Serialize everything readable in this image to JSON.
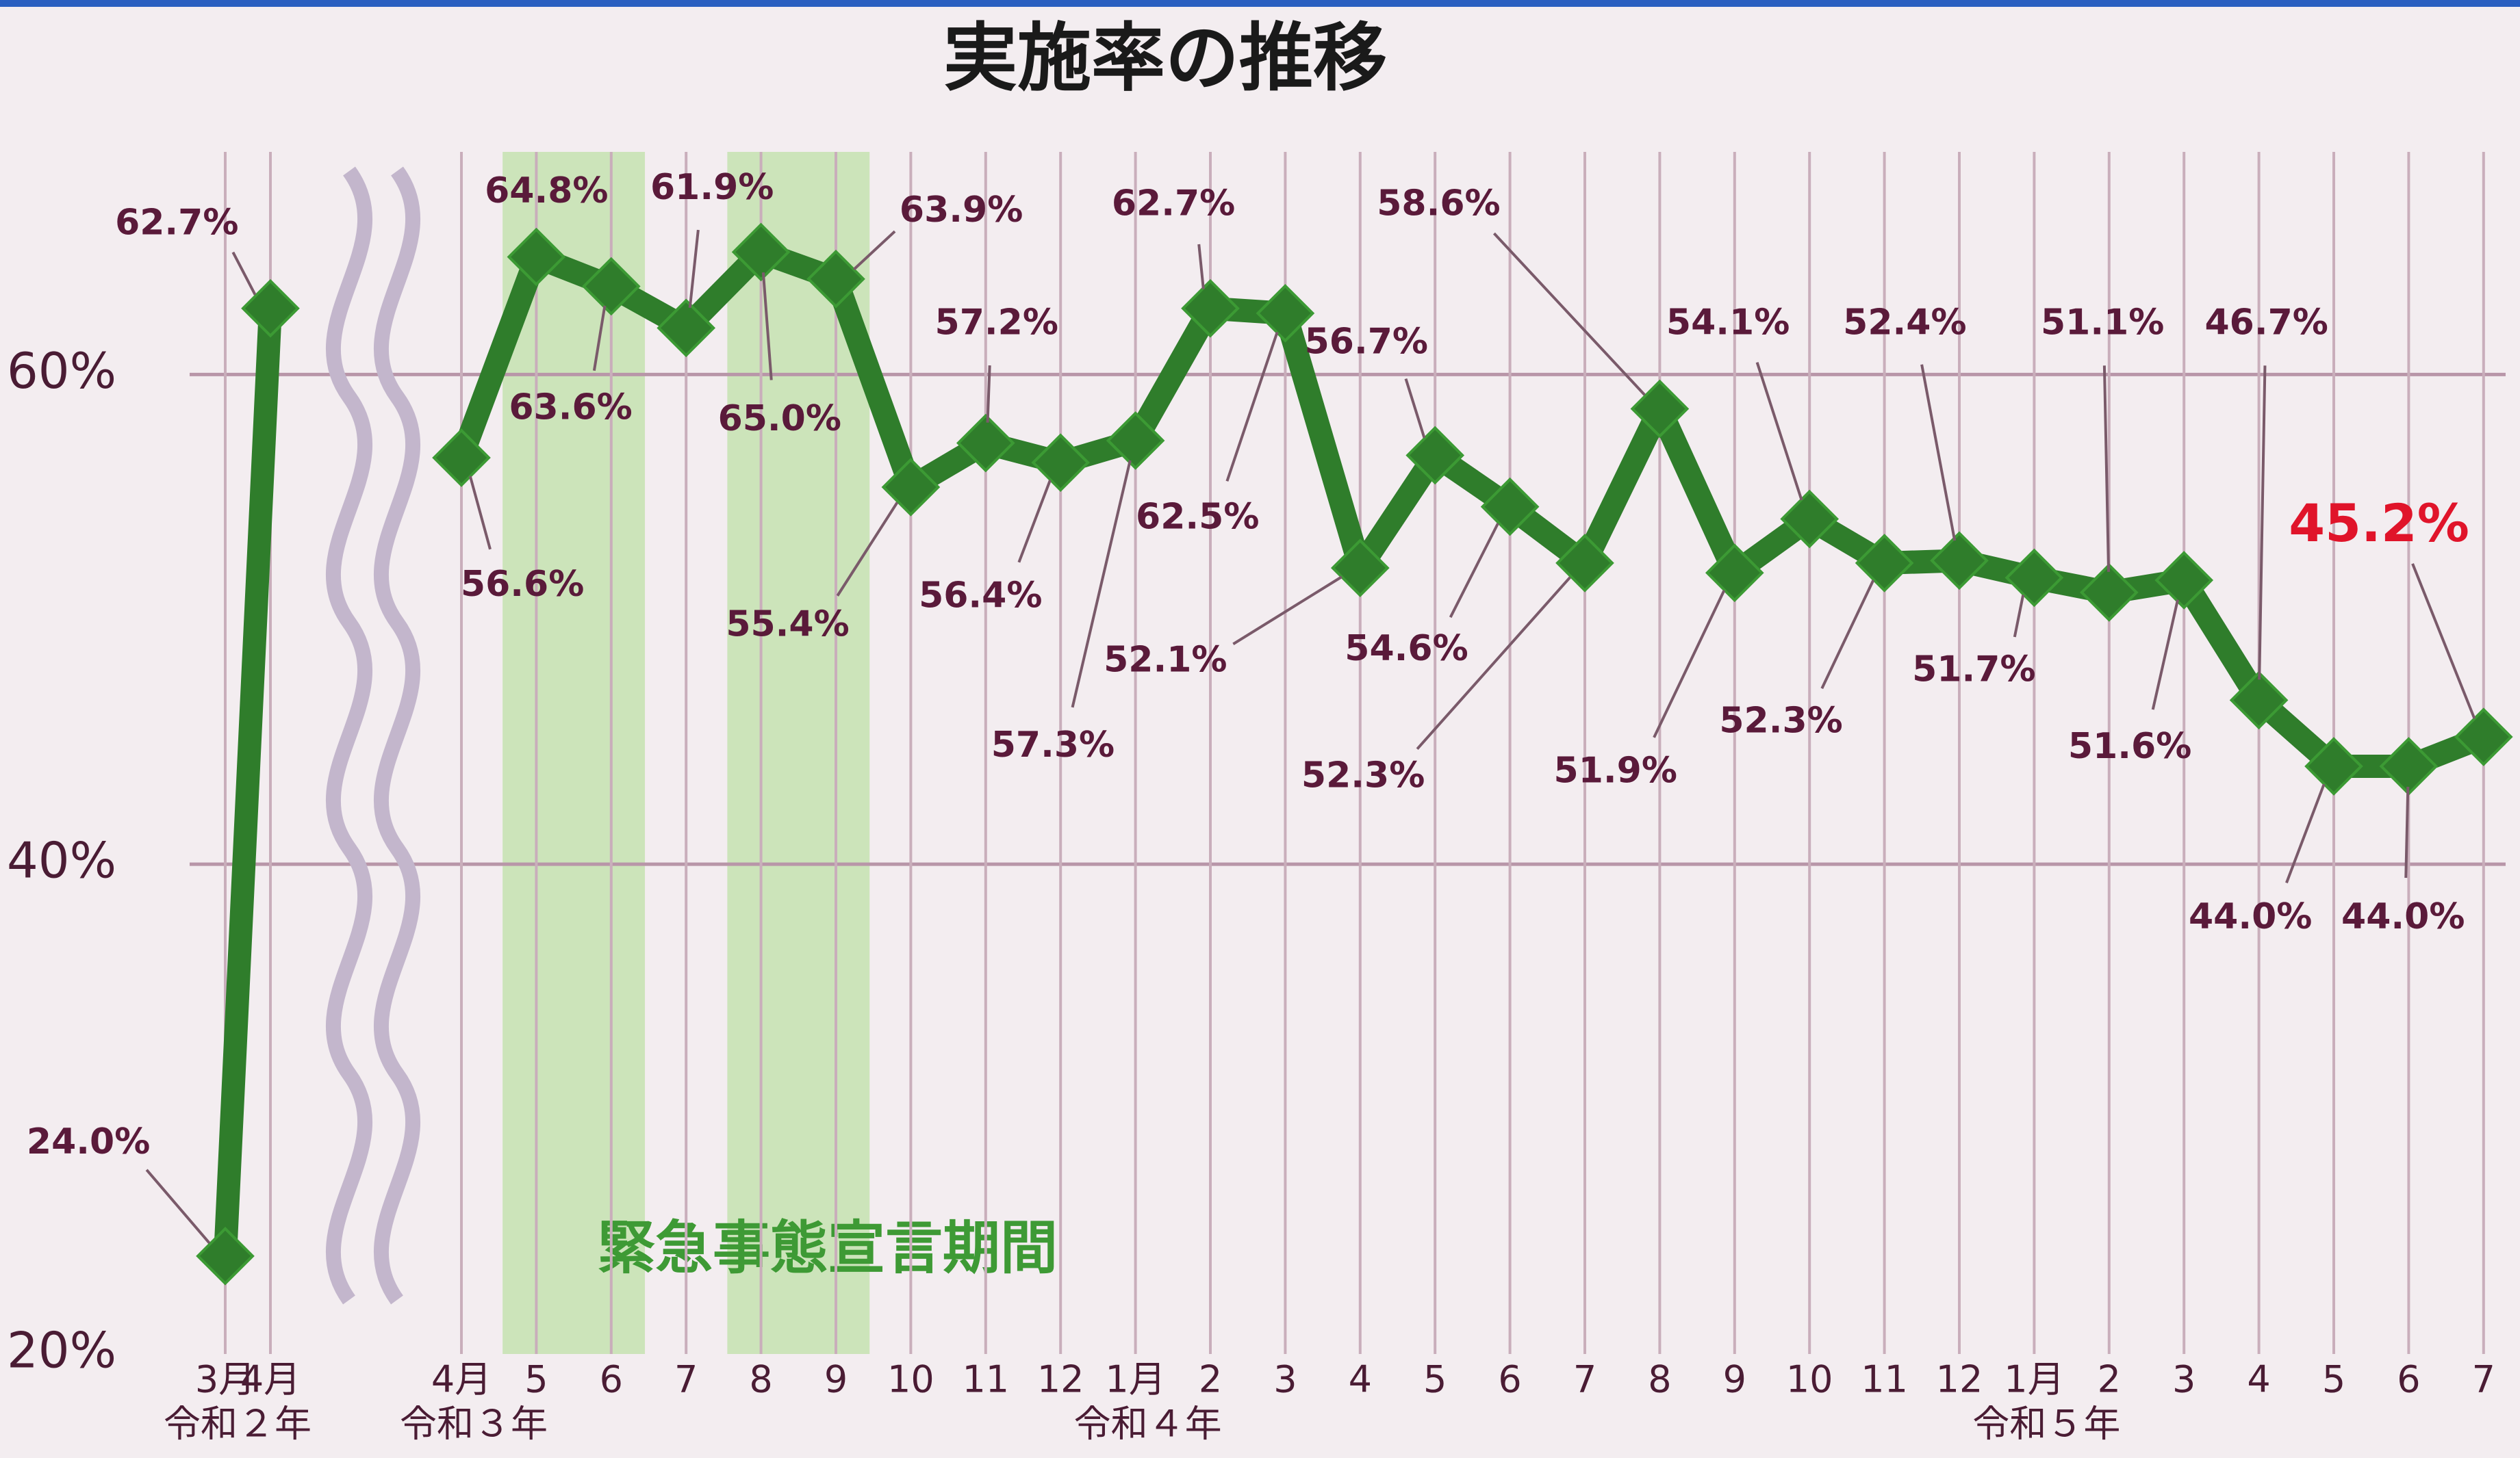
{
  "chart_data": {
    "type": "line",
    "title": "実施率の推移",
    "categories": [
      "3月",
      "4月",
      null,
      "4月",
      "5",
      "6",
      "7",
      "8",
      "9",
      "10",
      "11",
      "12",
      "1月",
      "2",
      "3",
      "4",
      "5",
      "6",
      "7",
      "8",
      "9",
      "10",
      "11",
      "12",
      "1月",
      "2",
      "3",
      "4",
      "5",
      "6",
      "7"
    ],
    "series": [
      {
        "name": "実施率",
        "color": "#2f7d2b",
        "values": [
          24.0,
          62.7,
          null,
          56.6,
          64.8,
          63.6,
          61.9,
          65.0,
          63.9,
          55.4,
          57.2,
          56.4,
          57.3,
          62.7,
          62.5,
          52.1,
          56.7,
          54.6,
          52.3,
          58.6,
          51.9,
          54.1,
          52.3,
          52.4,
          51.7,
          51.1,
          51.6,
          46.7,
          44.0,
          44.0,
          45.2
        ],
        "value_labels": [
          "24.0%",
          "62.7%",
          null,
          "56.6%",
          "64.8%",
          "63.6%",
          "61.9%",
          "65.0%",
          "63.9%",
          "55.4%",
          "57.2%",
          "56.4%",
          "57.3%",
          "62.7%",
          "62.5%",
          "52.1%",
          "56.7%",
          "54.6%",
          "52.3%",
          "58.6%",
          "51.9%",
          "54.1%",
          "52.3%",
          "52.4%",
          "51.7%",
          "51.1%",
          "51.6%",
          "46.7%",
          "44.0%",
          "44.0%",
          "45.2%"
        ]
      }
    ],
    "year_labels": [
      {
        "label": "令和２年",
        "start": 0
      },
      {
        "label": "令和３年",
        "start": 3
      },
      {
        "label": "令和４年",
        "start": 12
      },
      {
        "label": "令和５年",
        "start": 24
      }
    ],
    "highlight_periods": [
      {
        "start": 4,
        "end": 5
      },
      {
        "start": 7,
        "end": 8
      }
    ],
    "highlight_label": "緊急事態宣言期間",
    "ylim": [
      20,
      68
    ],
    "yticks": [
      {
        "value": 20,
        "label": "20%"
      },
      {
        "value": 40,
        "label": "40%"
      },
      {
        "value": 60,
        "label": "60%"
      }
    ],
    "grid": true
  }
}
